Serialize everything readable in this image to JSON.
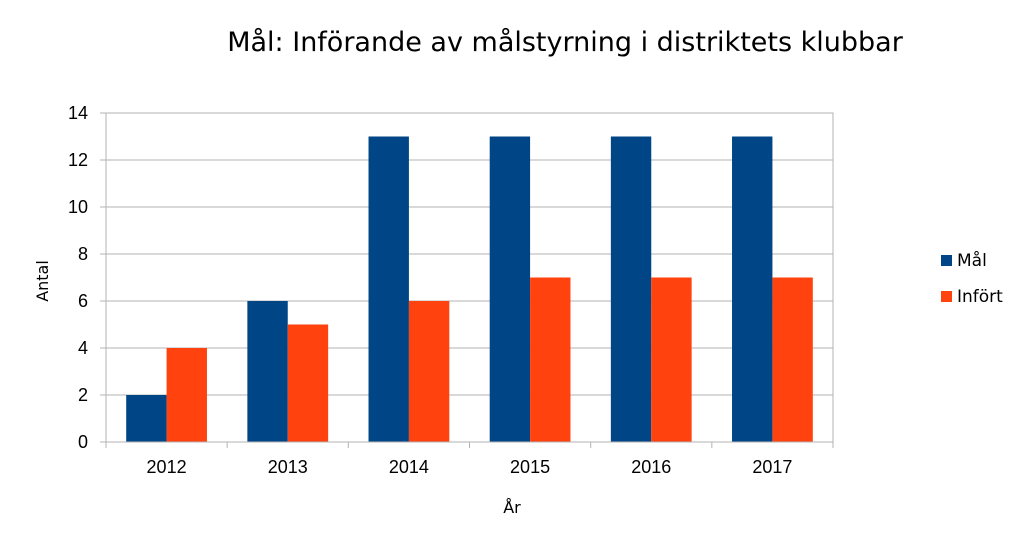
{
  "chart_data": {
    "type": "bar",
    "title": "Mål: Införande av målstyrning i distriktets klubbar",
    "xlabel": "År",
    "ylabel": "Antal",
    "categories": [
      "2012",
      "2013",
      "2014",
      "2015",
      "2016",
      "2017"
    ],
    "series": [
      {
        "name": "Mål",
        "color": "#004586",
        "values": [
          2,
          6,
          13,
          13,
          13,
          13
        ]
      },
      {
        "name": "Infört",
        "color": "#ff420e",
        "values": [
          4,
          5,
          6,
          7,
          7,
          7
        ]
      }
    ],
    "ylim": [
      0,
      14
    ],
    "yticks": [
      0,
      2,
      4,
      6,
      8,
      10,
      12,
      14
    ],
    "grid": true,
    "legend_position": "right"
  }
}
